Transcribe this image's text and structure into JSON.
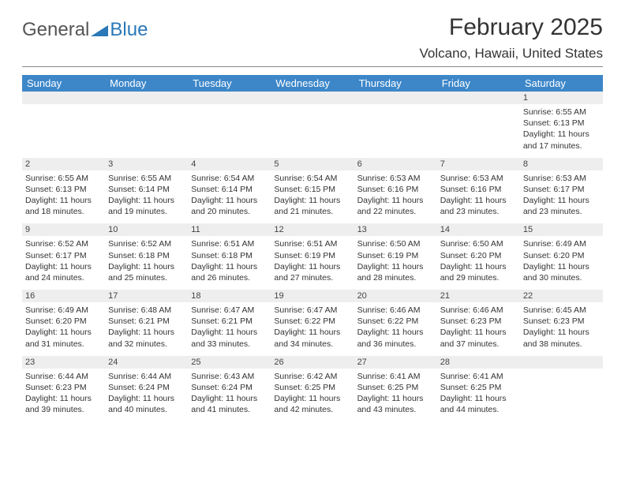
{
  "brand": {
    "part1": "General",
    "part2": "Blue"
  },
  "title": "February 2025",
  "location": "Volcano, Hawaii, United States",
  "colors": {
    "header_bg": "#3d87c9",
    "header_fg": "#ffffff",
    "daynum_bg": "#eeeeee",
    "text": "#333333",
    "logo_blue": "#2a78b8",
    "hr": "#888888"
  },
  "dayHeaders": [
    "Sunday",
    "Monday",
    "Tuesday",
    "Wednesday",
    "Thursday",
    "Friday",
    "Saturday"
  ],
  "weeks": [
    {
      "nums": [
        "",
        "",
        "",
        "",
        "",
        "",
        "1"
      ],
      "cells": [
        null,
        null,
        null,
        null,
        null,
        null,
        {
          "sr": "Sunrise: 6:55 AM",
          "ss": "Sunset: 6:13 PM",
          "dl": "Daylight: 11 hours and 17 minutes."
        }
      ]
    },
    {
      "nums": [
        "2",
        "3",
        "4",
        "5",
        "6",
        "7",
        "8"
      ],
      "cells": [
        {
          "sr": "Sunrise: 6:55 AM",
          "ss": "Sunset: 6:13 PM",
          "dl": "Daylight: 11 hours and 18 minutes."
        },
        {
          "sr": "Sunrise: 6:55 AM",
          "ss": "Sunset: 6:14 PM",
          "dl": "Daylight: 11 hours and 19 minutes."
        },
        {
          "sr": "Sunrise: 6:54 AM",
          "ss": "Sunset: 6:14 PM",
          "dl": "Daylight: 11 hours and 20 minutes."
        },
        {
          "sr": "Sunrise: 6:54 AM",
          "ss": "Sunset: 6:15 PM",
          "dl": "Daylight: 11 hours and 21 minutes."
        },
        {
          "sr": "Sunrise: 6:53 AM",
          "ss": "Sunset: 6:16 PM",
          "dl": "Daylight: 11 hours and 22 minutes."
        },
        {
          "sr": "Sunrise: 6:53 AM",
          "ss": "Sunset: 6:16 PM",
          "dl": "Daylight: 11 hours and 23 minutes."
        },
        {
          "sr": "Sunrise: 6:53 AM",
          "ss": "Sunset: 6:17 PM",
          "dl": "Daylight: 11 hours and 23 minutes."
        }
      ]
    },
    {
      "nums": [
        "9",
        "10",
        "11",
        "12",
        "13",
        "14",
        "15"
      ],
      "cells": [
        {
          "sr": "Sunrise: 6:52 AM",
          "ss": "Sunset: 6:17 PM",
          "dl": "Daylight: 11 hours and 24 minutes."
        },
        {
          "sr": "Sunrise: 6:52 AM",
          "ss": "Sunset: 6:18 PM",
          "dl": "Daylight: 11 hours and 25 minutes."
        },
        {
          "sr": "Sunrise: 6:51 AM",
          "ss": "Sunset: 6:18 PM",
          "dl": "Daylight: 11 hours and 26 minutes."
        },
        {
          "sr": "Sunrise: 6:51 AM",
          "ss": "Sunset: 6:19 PM",
          "dl": "Daylight: 11 hours and 27 minutes."
        },
        {
          "sr": "Sunrise: 6:50 AM",
          "ss": "Sunset: 6:19 PM",
          "dl": "Daylight: 11 hours and 28 minutes."
        },
        {
          "sr": "Sunrise: 6:50 AM",
          "ss": "Sunset: 6:20 PM",
          "dl": "Daylight: 11 hours and 29 minutes."
        },
        {
          "sr": "Sunrise: 6:49 AM",
          "ss": "Sunset: 6:20 PM",
          "dl": "Daylight: 11 hours and 30 minutes."
        }
      ]
    },
    {
      "nums": [
        "16",
        "17",
        "18",
        "19",
        "20",
        "21",
        "22"
      ],
      "cells": [
        {
          "sr": "Sunrise: 6:49 AM",
          "ss": "Sunset: 6:20 PM",
          "dl": "Daylight: 11 hours and 31 minutes."
        },
        {
          "sr": "Sunrise: 6:48 AM",
          "ss": "Sunset: 6:21 PM",
          "dl": "Daylight: 11 hours and 32 minutes."
        },
        {
          "sr": "Sunrise: 6:47 AM",
          "ss": "Sunset: 6:21 PM",
          "dl": "Daylight: 11 hours and 33 minutes."
        },
        {
          "sr": "Sunrise: 6:47 AM",
          "ss": "Sunset: 6:22 PM",
          "dl": "Daylight: 11 hours and 34 minutes."
        },
        {
          "sr": "Sunrise: 6:46 AM",
          "ss": "Sunset: 6:22 PM",
          "dl": "Daylight: 11 hours and 36 minutes."
        },
        {
          "sr": "Sunrise: 6:46 AM",
          "ss": "Sunset: 6:23 PM",
          "dl": "Daylight: 11 hours and 37 minutes."
        },
        {
          "sr": "Sunrise: 6:45 AM",
          "ss": "Sunset: 6:23 PM",
          "dl": "Daylight: 11 hours and 38 minutes."
        }
      ]
    },
    {
      "nums": [
        "23",
        "24",
        "25",
        "26",
        "27",
        "28",
        ""
      ],
      "cells": [
        {
          "sr": "Sunrise: 6:44 AM",
          "ss": "Sunset: 6:23 PM",
          "dl": "Daylight: 11 hours and 39 minutes."
        },
        {
          "sr": "Sunrise: 6:44 AM",
          "ss": "Sunset: 6:24 PM",
          "dl": "Daylight: 11 hours and 40 minutes."
        },
        {
          "sr": "Sunrise: 6:43 AM",
          "ss": "Sunset: 6:24 PM",
          "dl": "Daylight: 11 hours and 41 minutes."
        },
        {
          "sr": "Sunrise: 6:42 AM",
          "ss": "Sunset: 6:25 PM",
          "dl": "Daylight: 11 hours and 42 minutes."
        },
        {
          "sr": "Sunrise: 6:41 AM",
          "ss": "Sunset: 6:25 PM",
          "dl": "Daylight: 11 hours and 43 minutes."
        },
        {
          "sr": "Sunrise: 6:41 AM",
          "ss": "Sunset: 6:25 PM",
          "dl": "Daylight: 11 hours and 44 minutes."
        },
        null
      ]
    }
  ]
}
